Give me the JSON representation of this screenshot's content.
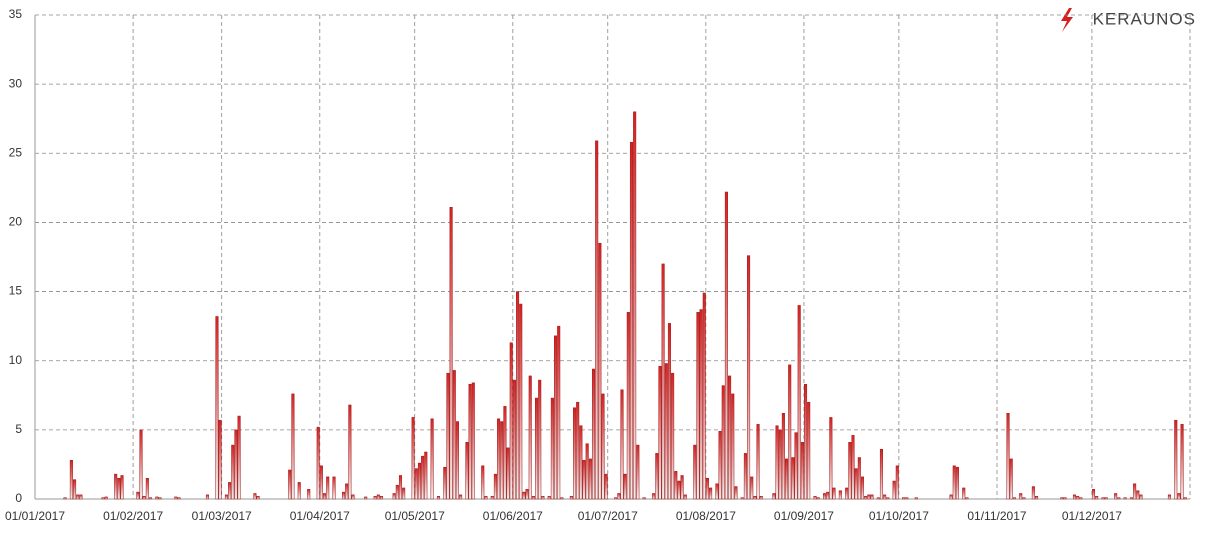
{
  "logo": "KERAUNOS",
  "chart_data": {
    "type": "bar",
    "color": "#d42020",
    "grid": true,
    "ylim": [
      0,
      35
    ],
    "yticks": [
      0,
      5,
      10,
      15,
      20,
      25,
      30,
      35
    ],
    "categories": [
      "01/01/2017",
      null,
      null,
      null,
      null,
      null,
      null,
      null,
      null,
      null,
      null,
      null,
      null,
      null,
      null,
      null,
      null,
      null,
      null,
      null,
      null,
      null,
      null,
      null,
      null,
      null,
      null,
      null,
      null,
      null,
      null,
      "01/02/2017",
      null,
      null,
      null,
      null,
      null,
      null,
      null,
      null,
      null,
      null,
      null,
      null,
      null,
      null,
      null,
      null,
      null,
      null,
      null,
      null,
      null,
      null,
      null,
      null,
      null,
      null,
      null,
      "01/03/2017",
      null,
      null,
      null,
      null,
      null,
      null,
      null,
      null,
      null,
      null,
      null,
      null,
      null,
      null,
      null,
      null,
      null,
      null,
      null,
      null,
      null,
      null,
      null,
      null,
      null,
      null,
      null,
      null,
      null,
      null,
      "01/04/2017",
      null,
      null,
      null,
      null,
      null,
      null,
      null,
      null,
      null,
      null,
      null,
      null,
      null,
      null,
      null,
      null,
      null,
      null,
      null,
      null,
      null,
      null,
      null,
      null,
      null,
      null,
      null,
      null,
      null,
      "01/05/2017",
      null,
      null,
      null,
      null,
      null,
      null,
      null,
      null,
      null,
      null,
      null,
      null,
      null,
      null,
      null,
      null,
      null,
      null,
      null,
      null,
      null,
      null,
      null,
      null,
      null,
      null,
      null,
      null,
      null,
      null,
      "01/06/2017",
      null,
      null,
      null,
      null,
      null,
      null,
      null,
      null,
      null,
      null,
      null,
      null,
      null,
      null,
      null,
      null,
      null,
      null,
      null,
      null,
      null,
      null,
      null,
      null,
      null,
      null,
      null,
      null,
      null,
      "01/07/2017",
      null,
      null,
      null,
      null,
      null,
      null,
      null,
      null,
      null,
      null,
      null,
      null,
      null,
      null,
      null,
      null,
      null,
      null,
      null,
      null,
      null,
      null,
      null,
      null,
      null,
      null,
      null,
      null,
      null,
      null,
      "01/08/2017",
      null,
      null,
      null,
      null,
      null,
      null,
      null,
      null,
      null,
      null,
      null,
      null,
      null,
      null,
      null,
      null,
      null,
      null,
      null,
      null,
      null,
      null,
      null,
      null,
      null,
      null,
      null,
      null,
      null,
      null,
      "01/09/2017",
      null,
      null,
      null,
      null,
      null,
      null,
      null,
      null,
      null,
      null,
      null,
      null,
      null,
      null,
      null,
      null,
      null,
      null,
      null,
      null,
      null,
      null,
      null,
      null,
      null,
      null,
      null,
      null,
      null,
      "01/10/2017",
      null,
      null,
      null,
      null,
      null,
      null,
      null,
      null,
      null,
      null,
      null,
      null,
      null,
      null,
      null,
      null,
      null,
      null,
      null,
      null,
      null,
      null,
      null,
      null,
      null,
      null,
      null,
      null,
      null,
      null,
      "01/11/2017",
      null,
      null,
      null,
      null,
      null,
      null,
      null,
      null,
      null,
      null,
      null,
      null,
      null,
      null,
      null,
      null,
      null,
      null,
      null,
      null,
      null,
      null,
      null,
      null,
      null,
      null,
      null,
      null,
      null,
      "01/12/2017",
      null,
      null,
      null,
      null,
      null,
      null,
      null,
      null,
      null,
      null,
      null,
      null,
      null,
      null,
      null,
      null,
      null,
      null,
      null,
      null,
      null,
      null,
      null,
      null,
      null,
      null,
      null,
      null,
      null,
      null
    ],
    "values": [
      0,
      0,
      0,
      0,
      0,
      0,
      0,
      0,
      0,
      0.1,
      0,
      2.8,
      1.4,
      0.3,
      0.3,
      0,
      0,
      0,
      0,
      0,
      0,
      0.1,
      0.15,
      0,
      0,
      1.8,
      1.5,
      1.7,
      0,
      0,
      0,
      0,
      0.5,
      5,
      0.2,
      1.5,
      0.1,
      0,
      0.15,
      0.1,
      0,
      0,
      0,
      0,
      0.15,
      0.1,
      0,
      0,
      0,
      0,
      0,
      0,
      0,
      0,
      0.3,
      0,
      0,
      13.2,
      5.7,
      0,
      0.3,
      1.2,
      3.9,
      5,
      6,
      0,
      0,
      0,
      0,
      0.4,
      0.2,
      0,
      0,
      0,
      0,
      0,
      0,
      0,
      0,
      0,
      2.1,
      7.6,
      0,
      1.2,
      0,
      0,
      0.7,
      0,
      0,
      5.2,
      2.4,
      0.4,
      1.6,
      0,
      1.6,
      0,
      0,
      0.5,
      1.1,
      6.8,
      0.3,
      0,
      0,
      0,
      0.15,
      0,
      0,
      0.2,
      0.3,
      0.2,
      0,
      0,
      0,
      0.4,
      1,
      1.7,
      0.8,
      0,
      0,
      5.9,
      2.2,
      2.6,
      3.1,
      3.4,
      0,
      5.8,
      0,
      0.2,
      0,
      2.3,
      9.1,
      21.1,
      9.3,
      5.6,
      0.3,
      0,
      4.1,
      8.3,
      8.4,
      0,
      0,
      2.4,
      0.2,
      0,
      0.2,
      1.8,
      5.8,
      5.6,
      6.7,
      3.7,
      11.3,
      8.6,
      15,
      14.1,
      0.5,
      0.7,
      8.9,
      0.2,
      7.3,
      8.6,
      0.2,
      0,
      0.2,
      7.3,
      11.8,
      12.5,
      0.1,
      0,
      0,
      0.2,
      6.6,
      7,
      5.3,
      2.8,
      4,
      2.9,
      9.4,
      25.9,
      18.5,
      7.6,
      1.8,
      0,
      0,
      0.1,
      0.4,
      7.9,
      1.8,
      13.5,
      25.8,
      28,
      3.9,
      0,
      0.1,
      0,
      0,
      0.4,
      3.3,
      9.6,
      17,
      9.8,
      12.7,
      9.1,
      2,
      1.3,
      1.7,
      0.3,
      0,
      0,
      3.9,
      13.5,
      13.7,
      14.9,
      1.5,
      0.8,
      0,
      1.1,
      4.9,
      8.2,
      22.2,
      8.9,
      7.6,
      0.9,
      0,
      0.1,
      3.3,
      17.6,
      1.6,
      0.2,
      5.4,
      0.2,
      0,
      0,
      0,
      0.4,
      5.3,
      5,
      6.2,
      2.9,
      9.7,
      3,
      4.8,
      14,
      4.1,
      8.3,
      7,
      0,
      0.2,
      0.1,
      0,
      0.4,
      0.5,
      5.9,
      0.8,
      0,
      0.6,
      0,
      0.8,
      4.1,
      4.6,
      2.2,
      3,
      1.6,
      0.2,
      0.3,
      0.3,
      0,
      0.1,
      3.6,
      0.3,
      0.1,
      0,
      1.3,
      2.4,
      0,
      0.1,
      0.1,
      0,
      0,
      0.1,
      0,
      0,
      0,
      0,
      0,
      0,
      0,
      0,
      0,
      0,
      0.3,
      2.4,
      2.3,
      0,
      0.8,
      0.1,
      0,
      0,
      0,
      0,
      0,
      0,
      0,
      0,
      0,
      0,
      0,
      0,
      6.2,
      2.9,
      0.1,
      0,
      0.4,
      0.1,
      0,
      0,
      0.9,
      0.2,
      0,
      0,
      0,
      0,
      0,
      0,
      0,
      0.1,
      0.1,
      0,
      0,
      0.3,
      0.2,
      0.1,
      0,
      0,
      0,
      0.7,
      0.2,
      0,
      0.1,
      0.1,
      0,
      0,
      0.4,
      0.1,
      0,
      0.1,
      0,
      0.1,
      1.1,
      0.6,
      0.3,
      0,
      0,
      0,
      0,
      0,
      0,
      0,
      0,
      0.3,
      0,
      5.7,
      0.4,
      5.4,
      0.1,
      0
    ]
  }
}
